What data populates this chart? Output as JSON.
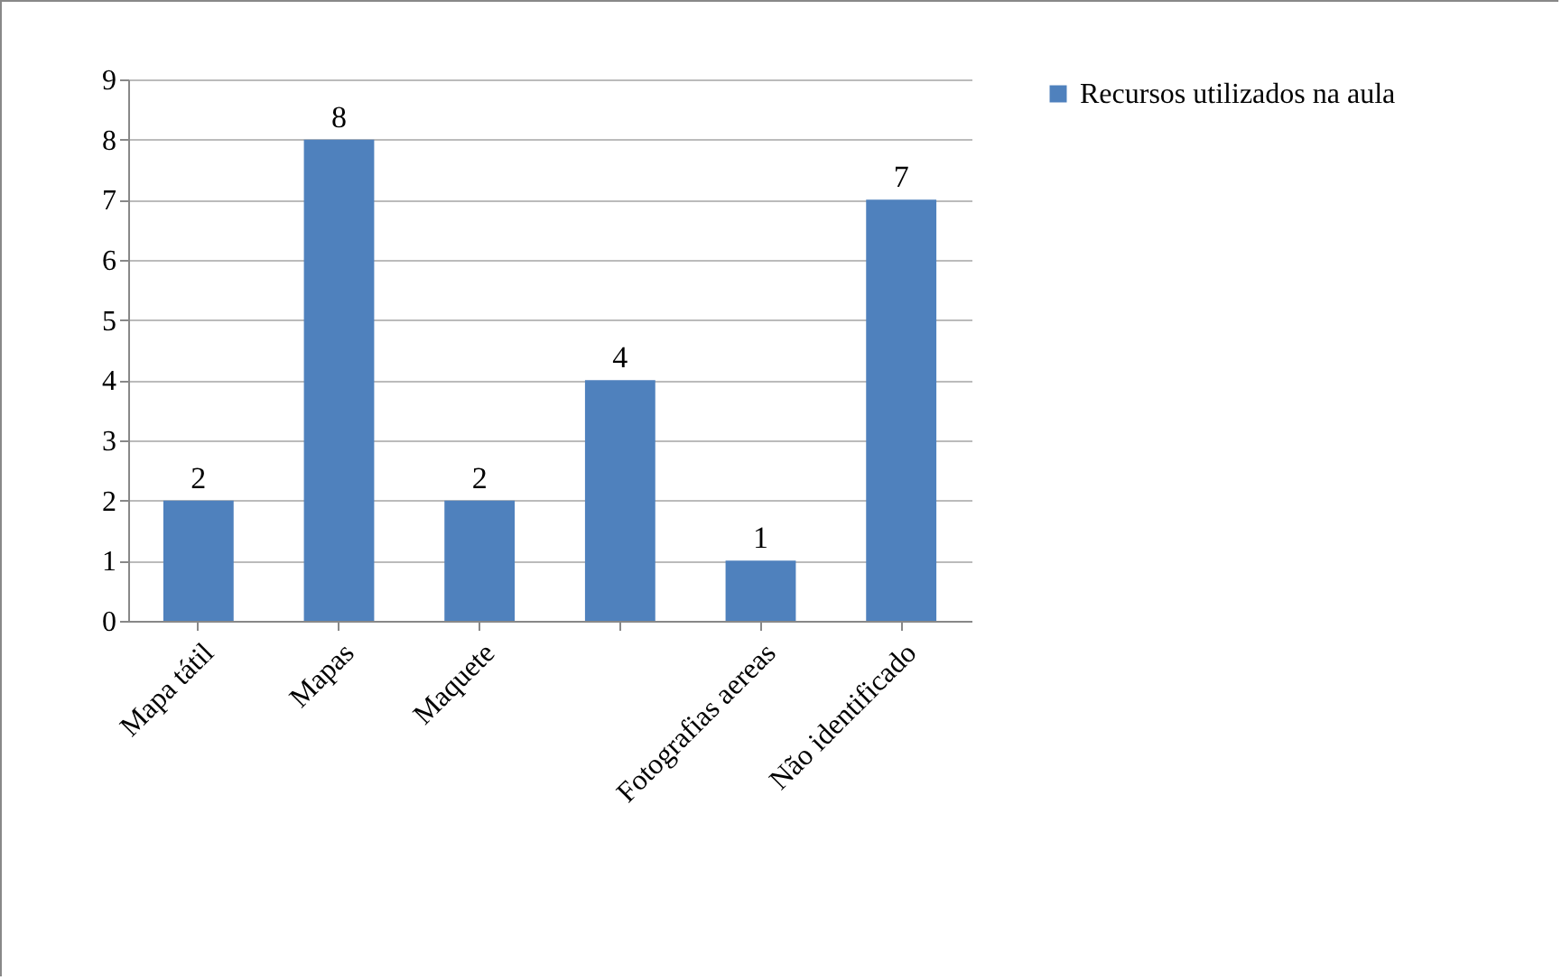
{
  "chart_data": {
    "type": "bar",
    "categories": [
      "Mapa tátil",
      "Mapas",
      "Maquete",
      null,
      "Fotografias aereas",
      "Não identificado"
    ],
    "series": [
      {
        "name": "Recursos utilizados na aula",
        "color": "#4f81bd",
        "values": [
          2,
          8,
          2,
          4,
          1,
          7
        ]
      }
    ],
    "ylim": [
      0,
      9
    ],
    "yticks": [
      0,
      1,
      2,
      3,
      4,
      5,
      6,
      7,
      8,
      9
    ],
    "grid": "y",
    "legend": "right",
    "data_labels": true
  }
}
